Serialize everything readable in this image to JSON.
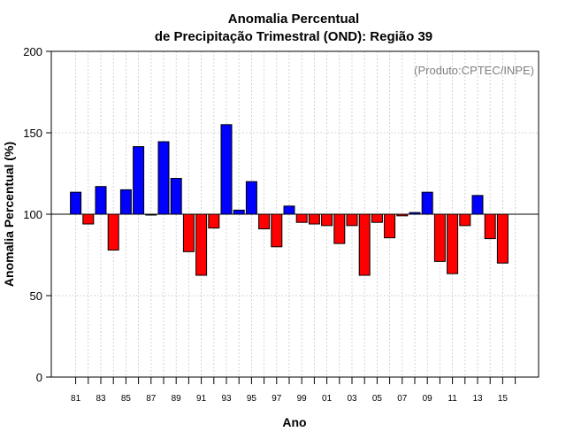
{
  "chart_data": {
    "type": "bar",
    "title_line1": "Anomalia Percentual",
    "title_line2": "de Precipitação Trimestral (OND): Região 39",
    "watermark": "(Produto:CPTEC/INPE)",
    "xlabel": "Ano",
    "ylabel": "Anomalia Percentual (%)",
    "ylim": [
      0,
      200
    ],
    "yticks": [
      0,
      50,
      100,
      150,
      200
    ],
    "baseline": 100,
    "grid": true,
    "colors": {
      "above": "#0000ff",
      "below": "#ff0000",
      "edge": "#000000",
      "grid": "#c8c8c8"
    },
    "categories": [
      "81",
      "82",
      "83",
      "84",
      "85",
      "86",
      "87",
      "88",
      "89",
      "90",
      "91",
      "92",
      "93",
      "94",
      "95",
      "96",
      "97",
      "98",
      "99",
      "00",
      "01",
      "02",
      "03",
      "04",
      "05",
      "06",
      "07",
      "08",
      "09",
      "10",
      "11",
      "12",
      "13",
      "14",
      "15",
      "16"
    ],
    "values": [
      113.5,
      94,
      117,
      78,
      115,
      141.5,
      99.5,
      144.5,
      122,
      77,
      62.5,
      91.5,
      155,
      102.5,
      120,
      91,
      80,
      105,
      95,
      94,
      93,
      82,
      93,
      62.5,
      95,
      85.5,
      99,
      101,
      113.5,
      71,
      63.5,
      93,
      111.5,
      85,
      70,
      null
    ],
    "xtick_labels": [
      "81",
      "83",
      "85",
      "87",
      "89",
      "91",
      "93",
      "95",
      "97",
      "99",
      "01",
      "03",
      "05",
      "07",
      "09",
      "11",
      "13",
      "15"
    ]
  }
}
